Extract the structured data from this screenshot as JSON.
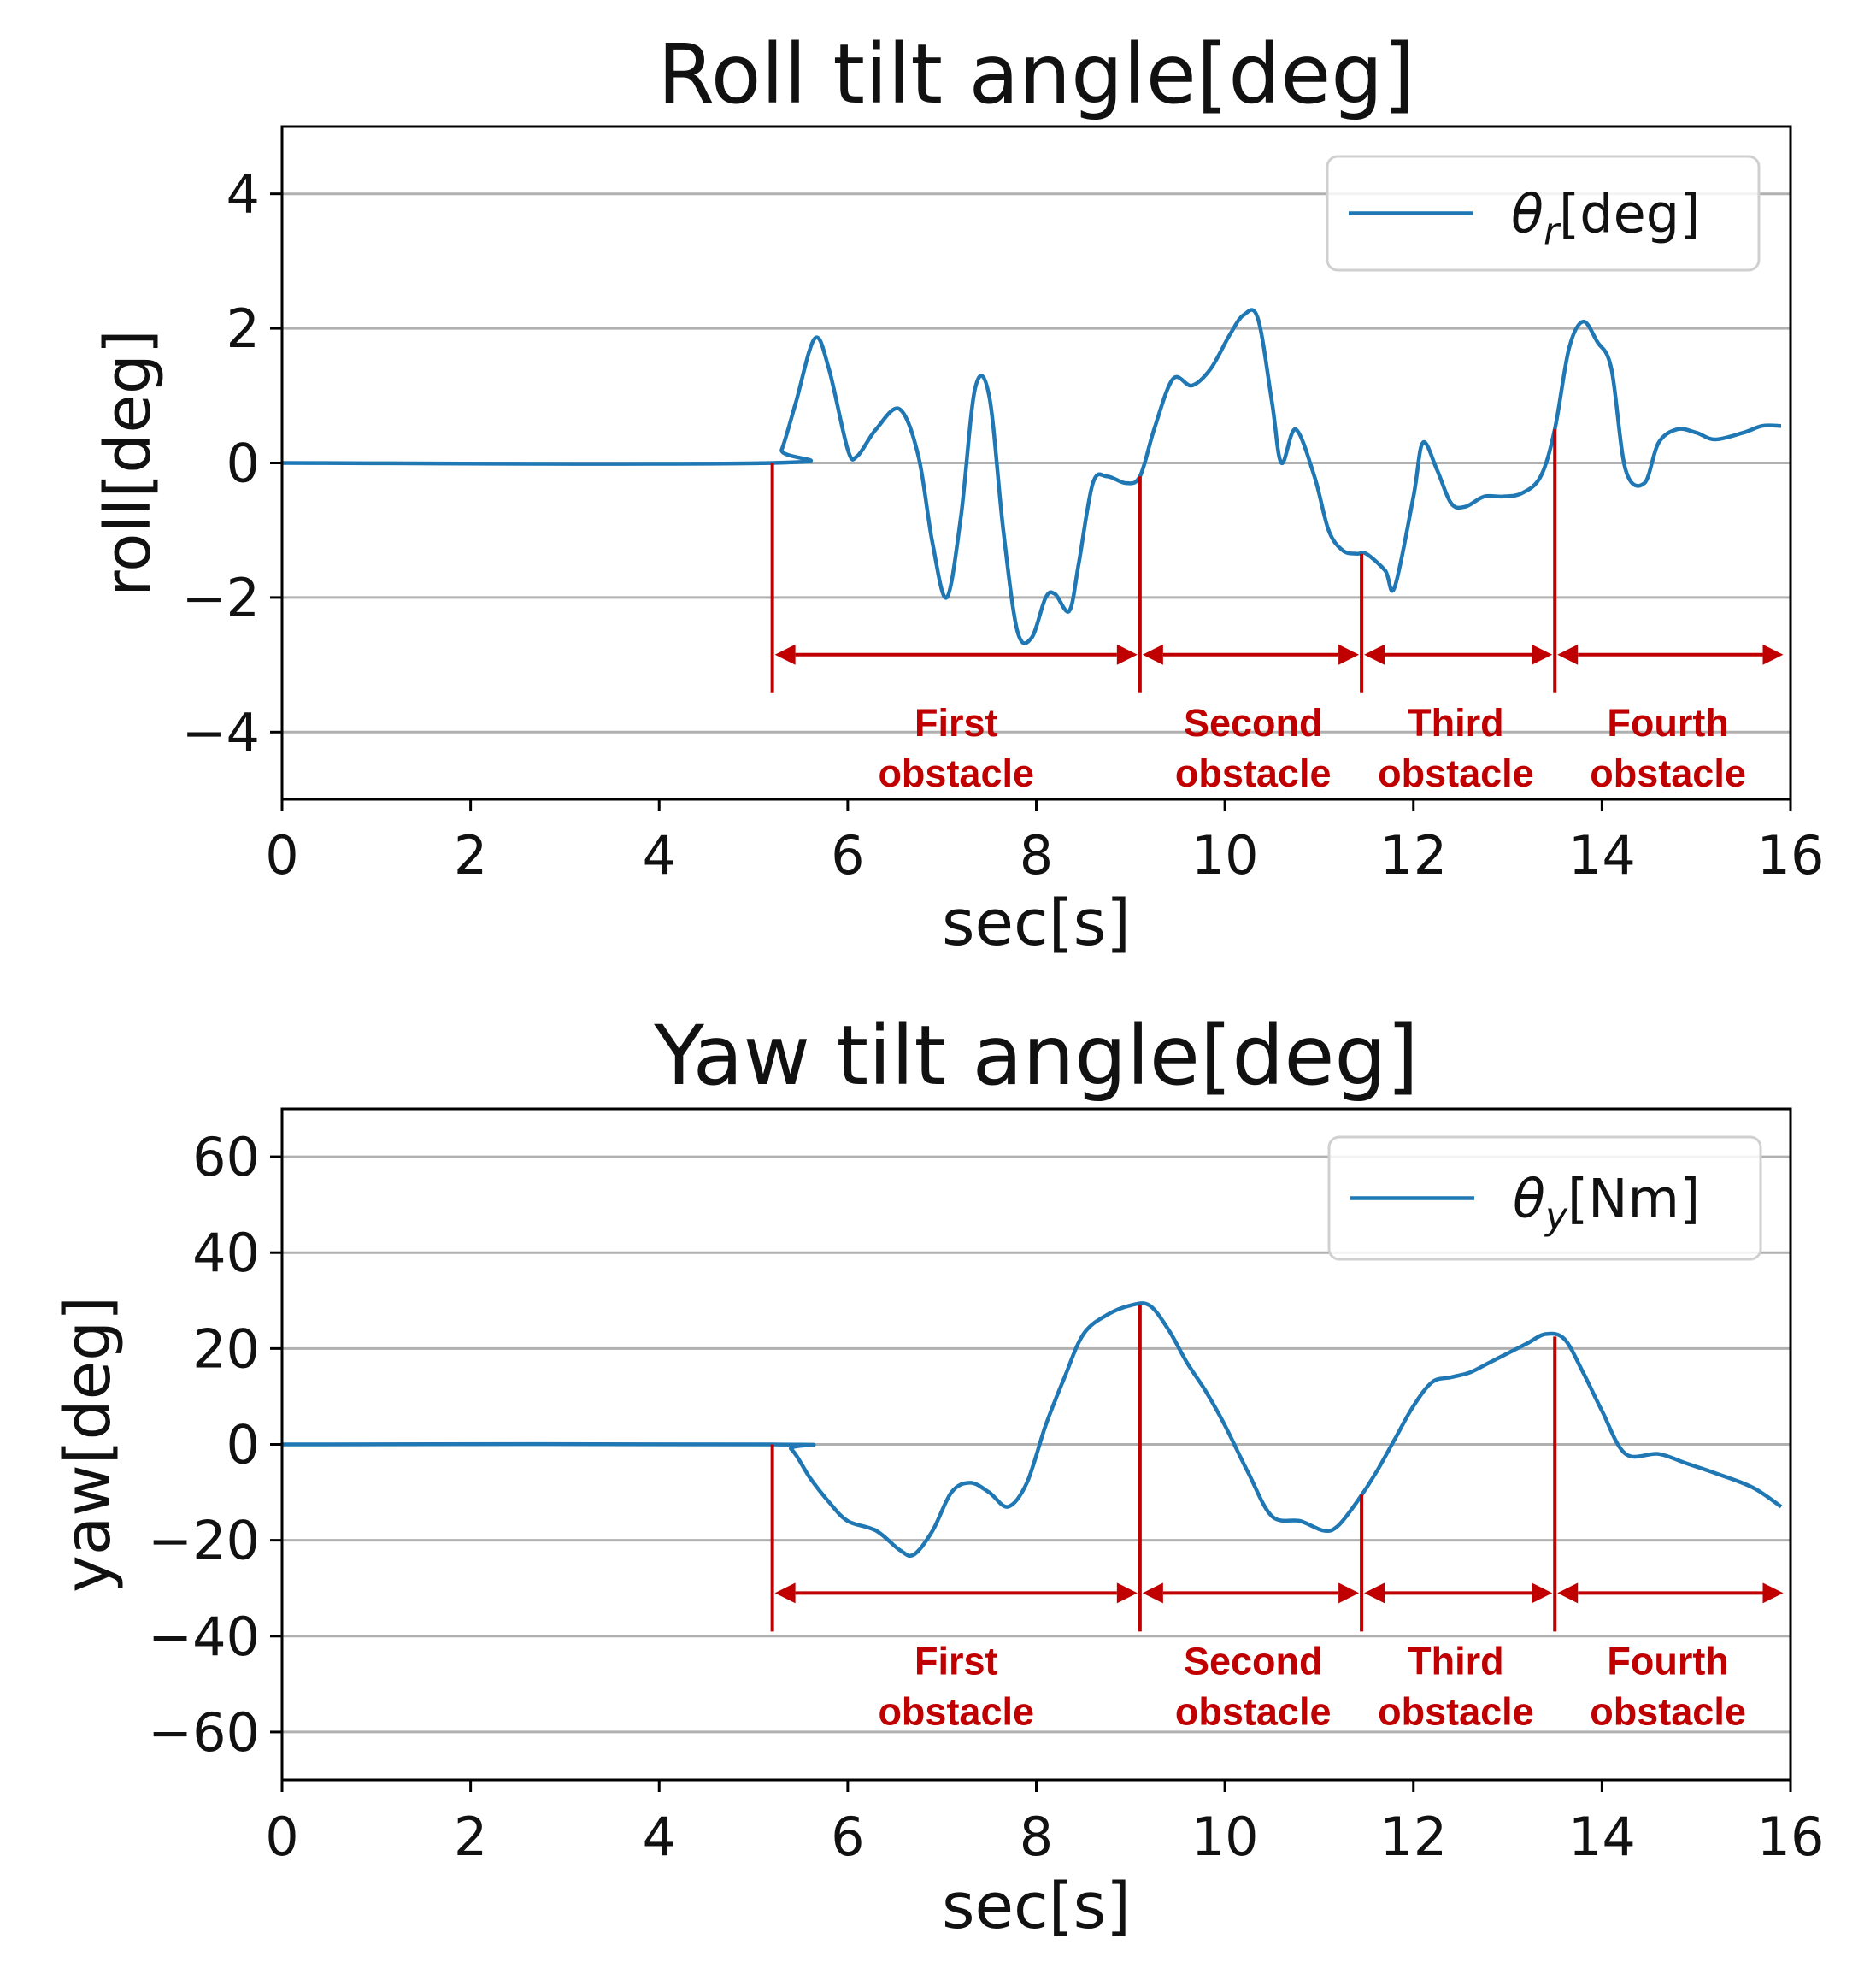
{
  "colors": {
    "line": "#1f77b4",
    "annotation": "#c00000",
    "grid": "#b0b0b0",
    "axis": "#000000"
  },
  "chart_data": [
    {
      "type": "line",
      "title": "Roll tilt angle[deg]",
      "xlabel": "sec[s]",
      "ylabel": "roll[deg]",
      "xlim": [
        0,
        16
      ],
      "ylim": [
        -5,
        5
      ],
      "xticks": [
        "0",
        "2",
        "4",
        "6",
        "8",
        "10",
        "12",
        "14",
        "16"
      ],
      "yticks": [
        4,
        2,
        0,
        -2,
        -4
      ],
      "ytick_labels": [
        "4",
        "2",
        "0",
        "−2",
        "−4"
      ],
      "grid": "y",
      "legend": {
        "symbol": "θ",
        "subscript": "r",
        "unit": "[deg]",
        "loc": "upper right"
      },
      "series": [
        {
          "name": "θr[deg]",
          "x": [
            0,
            5.2,
            5.3,
            5.45,
            5.65,
            5.8,
            6.0,
            6.1,
            6.3,
            6.55,
            6.75,
            6.9,
            7.05,
            7.2,
            7.35,
            7.5,
            7.65,
            7.8,
            7.95,
            8.1,
            8.2,
            8.35,
            8.45,
            8.6,
            8.75,
            8.95,
            9.1,
            9.25,
            9.45,
            9.65,
            9.85,
            10.05,
            10.2,
            10.35,
            10.5,
            10.6,
            10.75,
            10.95,
            11.1,
            11.25,
            11.4,
            11.5,
            11.7,
            11.8,
            12.0,
            12.1,
            12.25,
            12.4,
            12.55,
            12.75,
            12.95,
            13.15,
            13.35,
            13.5,
            13.65,
            13.8,
            13.95,
            14.1,
            14.25,
            14.45,
            14.6,
            14.8,
            15.0,
            15.2,
            15.5,
            15.7,
            15.9
          ],
          "y": [
            0,
            0,
            0.2,
            0.9,
            1.85,
            1.4,
            0.2,
            0.1,
            0.5,
            0.8,
            0.1,
            -1.2,
            -2.0,
            -0.8,
            1.1,
            1.0,
            -1.0,
            -2.5,
            -2.6,
            -2.0,
            -1.95,
            -2.2,
            -1.5,
            -0.3,
            -0.2,
            -0.3,
            -0.2,
            0.5,
            1.25,
            1.15,
            1.4,
            1.9,
            2.2,
            2.15,
            0.9,
            0.0,
            0.5,
            -0.2,
            -1.0,
            -1.3,
            -1.35,
            -1.35,
            -1.6,
            -1.85,
            -0.5,
            0.3,
            -0.1,
            -0.6,
            -0.65,
            -0.5,
            -0.5,
            -0.45,
            -0.2,
            0.5,
            1.7,
            2.1,
            1.8,
            1.4,
            -0.1,
            -0.3,
            0.3,
            0.5,
            0.45,
            0.35,
            0.45,
            0.55,
            0.55
          ]
        }
      ],
      "markers_x": [
        5.2,
        9.1,
        11.45,
        13.5
      ],
      "arrows": [
        [
          5.2,
          9.1
        ],
        [
          9.1,
          11.45
        ],
        [
          11.45,
          13.5
        ],
        [
          13.5,
          15.95
        ]
      ],
      "annotation_y": -2.85,
      "annotations": [
        {
          "line1": "First",
          "line2": "obstacle",
          "x": 7.15
        },
        {
          "line1": "Second",
          "line2": "obstacle",
          "x": 10.3
        },
        {
          "line1": "Third",
          "line2": "obstacle",
          "x": 12.45
        },
        {
          "line1": "Fourth",
          "line2": "obstacle",
          "x": 14.7
        }
      ]
    },
    {
      "type": "line",
      "title": "Yaw tilt angle[deg]",
      "xlabel": "sec[s]",
      "ylabel": "yaw[deg]",
      "xlim": [
        0,
        16
      ],
      "ylim": [
        -70,
        70
      ],
      "xticks": [
        "0",
        "2",
        "4",
        "6",
        "8",
        "10",
        "12",
        "14",
        "16"
      ],
      "yticks": [
        60,
        40,
        20,
        0,
        -20,
        -40,
        -60
      ],
      "ytick_labels": [
        "60",
        "40",
        "20",
        "0",
        "−20",
        "−40",
        "−60"
      ],
      "grid": "y",
      "legend": {
        "symbol": "θ",
        "subscript": "y",
        "unit": "[Nm]",
        "loc": "upper right"
      },
      "series": [
        {
          "name": "θy[Nm]",
          "x": [
            0,
            5.2,
            5.4,
            5.6,
            5.8,
            6.0,
            6.3,
            6.55,
            6.7,
            6.9,
            7.1,
            7.3,
            7.5,
            7.7,
            7.9,
            8.1,
            8.3,
            8.5,
            8.75,
            9.0,
            9.2,
            9.4,
            9.6,
            9.8,
            10.0,
            10.25,
            10.5,
            10.8,
            11.05,
            11.2,
            11.4,
            11.6,
            11.8,
            12.0,
            12.2,
            12.4,
            12.6,
            12.8,
            13.0,
            13.2,
            13.4,
            13.6,
            13.8,
            14.0,
            14.25,
            14.6,
            14.9,
            15.2,
            15.6,
            15.9
          ],
          "y": [
            0,
            0,
            -1,
            -7,
            -12,
            -16,
            -18,
            -22,
            -23,
            -18,
            -10,
            -8,
            -10,
            -13,
            -8,
            4,
            14,
            23,
            27,
            29,
            29,
            24,
            17,
            11,
            4,
            -6,
            -15,
            -16,
            -18,
            -17,
            -12,
            -6,
            1,
            8,
            13,
            14,
            15,
            17,
            19,
            21,
            23,
            22,
            15,
            7,
            -2,
            -2,
            -4,
            -6,
            -9,
            -13
          ]
        }
      ],
      "markers_x": [
        5.2,
        9.1,
        11.45,
        13.5
      ],
      "arrows": [
        [
          5.2,
          9.1
        ],
        [
          9.1,
          11.45
        ],
        [
          11.45,
          13.5
        ],
        [
          13.5,
          15.95
        ]
      ],
      "annotation_y": -31,
      "annotations": [
        {
          "line1": "First",
          "line2": "obstacle",
          "x": 7.15
        },
        {
          "line1": "Second",
          "line2": "obstacle",
          "x": 10.3
        },
        {
          "line1": "Third",
          "line2": "obstacle",
          "x": 12.45
        },
        {
          "line1": "Fourth",
          "line2": "obstacle",
          "x": 14.7
        }
      ]
    }
  ]
}
